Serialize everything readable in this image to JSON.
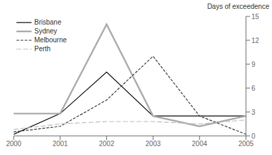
{
  "chart_data": {
    "type": "line",
    "x": [
      2000,
      2001,
      2002,
      2003,
      2004,
      2005
    ],
    "series": [
      {
        "name": "Brisbane",
        "color": "#000000",
        "line_style": "solid",
        "values": [
          0.2,
          2.8,
          8.0,
          2.5,
          2.5,
          2.5
        ]
      },
      {
        "name": "Sydney",
        "color": "#aaaaaa",
        "line_style": "solid",
        "values": [
          2.8,
          2.8,
          14.0,
          2.5,
          1.2,
          2.5
        ]
      },
      {
        "name": "Melbourne",
        "color": "#333333",
        "line_style": "dashed",
        "values": [
          0.5,
          1.2,
          4.5,
          10.0,
          2.5,
          0.2
        ]
      },
      {
        "name": "Perth",
        "color": "#bbbbbb",
        "line_style": "longdash",
        "values": [
          0.8,
          1.5,
          1.8,
          1.8,
          1.5,
          2.0
        ]
      }
    ],
    "xlim": [
      2000,
      2005
    ],
    "xticks": [
      2000,
      2001,
      2002,
      2003,
      2004,
      2005
    ],
    "ylim": [
      0,
      15
    ],
    "yticks": [
      0,
      3,
      6,
      9,
      12,
      15
    ],
    "ylabel": "Days of exceedence",
    "grid": false,
    "legend": "upper left"
  }
}
